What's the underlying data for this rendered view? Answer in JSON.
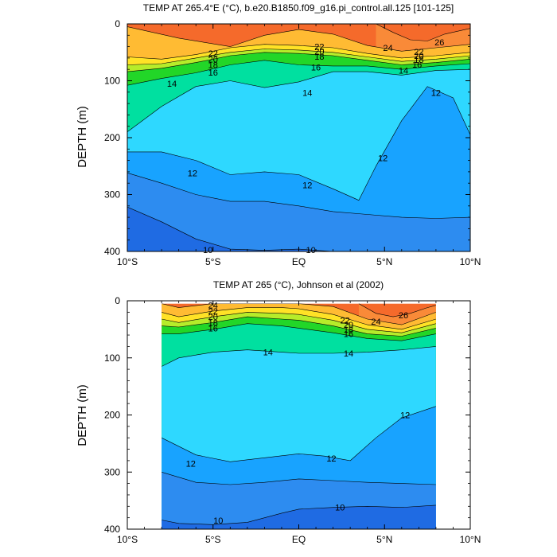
{
  "chart_data": [
    {
      "type": "heatmap",
      "panel": "model",
      "title": "TEMP AT 265.4°E (°C), b.e20.B1850.f09_g16.pi_control.all.125 [101-125]",
      "ylabel": "DEPTH (m)",
      "xlabel": "",
      "x_ticks": [
        "10°S",
        "5°S",
        "EQ",
        "5°N",
        "10°N"
      ],
      "x_tick_values": [
        -10,
        -5,
        0,
        5,
        10
      ],
      "y_ticks": [
        "0",
        "100",
        "200",
        "300",
        "400"
      ],
      "y_tick_values": [
        0,
        100,
        200,
        300,
        400
      ],
      "xlim": [
        -10,
        10
      ],
      "ylim": [
        0,
        400
      ],
      "y_inverted": true,
      "x_data_range": [
        -10,
        10
      ],
      "contour_interval": 1,
      "isotherms": [
        {
          "temp": 26,
          "x": [
            4.5,
            5.5,
            6.5,
            7.5,
            8.5,
            10
          ],
          "depth": [
            0,
            15,
            28,
            30,
            18,
            8
          ]
        },
        {
          "temp": 24,
          "x": [
            -10,
            -7,
            -4,
            -2,
            0,
            2,
            4,
            6,
            8,
            10
          ],
          "depth": [
            5,
            25,
            40,
            20,
            10,
            18,
            38,
            48,
            42,
            36
          ]
        },
        {
          "temp": 22,
          "x": [
            -10,
            -8,
            -6,
            -4,
            -2,
            0,
            2,
            4,
            6,
            8,
            10
          ],
          "depth": [
            58,
            62,
            54,
            42,
            36,
            38,
            42,
            52,
            60,
            56,
            50
          ]
        },
        {
          "temp": 20,
          "x": [
            -10,
            -8,
            -6,
            -4,
            -2,
            0,
            2,
            4,
            6,
            8,
            10
          ],
          "depth": [
            72,
            70,
            60,
            50,
            44,
            46,
            50,
            58,
            66,
            62,
            56
          ]
        },
        {
          "temp": 18,
          "x": [
            -10,
            -8,
            -6,
            -4,
            -2,
            0,
            2,
            4,
            6,
            8,
            10
          ],
          "depth": [
            84,
            78,
            68,
            56,
            50,
            52,
            56,
            64,
            72,
            68,
            62
          ]
        },
        {
          "temp": 16,
          "x": [
            -10,
            -8,
            -6,
            -4,
            -2,
            0,
            2,
            4,
            6,
            8,
            10
          ],
          "depth": [
            108,
            96,
            86,
            72,
            64,
            72,
            74,
            74,
            80,
            74,
            70
          ]
        },
        {
          "temp": 14,
          "x": [
            -10,
            -8,
            -6,
            -4,
            -2,
            0,
            2,
            4,
            6,
            8,
            10
          ],
          "depth": [
            190,
            145,
            110,
            100,
            112,
            102,
            84,
            84,
            90,
            82,
            80
          ]
        },
        {
          "temp": 12,
          "x": [
            -10,
            -8,
            -6,
            -4,
            -2,
            0,
            2,
            3.5,
            4.5,
            6,
            7.5,
            9,
            10
          ],
          "depth": [
            225,
            225,
            240,
            265,
            260,
            265,
            290,
            310,
            250,
            170,
            110,
            130,
            195
          ]
        },
        {
          "temp": 11,
          "x": [
            -10,
            -8,
            -6,
            -4,
            -2,
            0,
            2,
            4,
            6,
            8,
            10
          ],
          "depth": [
            262,
            280,
            300,
            312,
            312,
            320,
            330,
            335,
            340,
            342,
            340
          ]
        },
        {
          "temp": 10,
          "x": [
            -10,
            -8,
            -6,
            -4,
            -2,
            0,
            2,
            4,
            6,
            8,
            10
          ],
          "depth": [
            322,
            348,
            378,
            396,
            398,
            396,
            400,
            400,
            400,
            400,
            400
          ]
        }
      ],
      "contour_labels": [
        {
          "text": "22",
          "x": -5,
          "depth": 52
        },
        {
          "text": "20",
          "x": -5,
          "depth": 62
        },
        {
          "text": "18",
          "x": -5,
          "depth": 72
        },
        {
          "text": "16",
          "x": -5,
          "depth": 85
        },
        {
          "text": "14",
          "x": -7.4,
          "depth": 105
        },
        {
          "text": "12",
          "x": -6.2,
          "depth": 262
        },
        {
          "text": "10",
          "x": -5.3,
          "depth": 397
        },
        {
          "text": "22",
          "x": 1.2,
          "depth": 40
        },
        {
          "text": "20",
          "x": 1.2,
          "depth": 48
        },
        {
          "text": "18",
          "x": 1.2,
          "depth": 57
        },
        {
          "text": "16",
          "x": 1.0,
          "depth": 76
        },
        {
          "text": "14",
          "x": 0.5,
          "depth": 121
        },
        {
          "text": "12",
          "x": 0.5,
          "depth": 283
        },
        {
          "text": "10",
          "x": 0.7,
          "depth": 397
        },
        {
          "text": "24",
          "x": 5.2,
          "depth": 42
        },
        {
          "text": "26",
          "x": 8.2,
          "depth": 32
        },
        {
          "text": "22",
          "x": 7.0,
          "depth": 49
        },
        {
          "text": "20",
          "x": 7.0,
          "depth": 56
        },
        {
          "text": "18",
          "x": 7.0,
          "depth": 63
        },
        {
          "text": "16",
          "x": 6.9,
          "depth": 71
        },
        {
          "text": "14",
          "x": 6.1,
          "depth": 82
        },
        {
          "text": "12",
          "x": 8.0,
          "depth": 121
        },
        {
          "text": "12",
          "x": 4.9,
          "depth": 236
        }
      ]
    },
    {
      "type": "heatmap",
      "panel": "observations",
      "title": "TEMP AT 265 (°C), Johnson et al (2002)",
      "ylabel": "DEPTH (m)",
      "xlabel": "",
      "x_ticks": [
        "10°S",
        "5°S",
        "EQ",
        "5°N",
        "10°N"
      ],
      "x_tick_values": [
        -10,
        -5,
        0,
        5,
        10
      ],
      "y_ticks": [
        "0",
        "100",
        "200",
        "300",
        "400"
      ],
      "y_tick_values": [
        0,
        100,
        200,
        300,
        400
      ],
      "xlim": [
        -10,
        10
      ],
      "ylim": [
        0,
        400
      ],
      "y_inverted": true,
      "x_data_range": [
        -8,
        8
      ],
      "depth_data_range": [
        5,
        400
      ],
      "contour_interval": 1,
      "isotherms": [
        {
          "temp": 26,
          "x": [
            3.5,
            4.5,
            5.5,
            6.5,
            7.5,
            8
          ],
          "depth": [
            5,
            22,
            28,
            22,
            12,
            8
          ]
        },
        {
          "temp": 24,
          "x": [
            -8,
            -7,
            -5,
            -3,
            -1,
            0,
            2,
            4,
            6,
            8
          ],
          "depth": [
            5,
            12,
            5,
            5,
            5,
            5,
            10,
            32,
            42,
            20
          ]
        },
        {
          "temp": 22,
          "x": [
            -8,
            -7,
            -5,
            -3,
            -1,
            0,
            2,
            4,
            6,
            8
          ],
          "depth": [
            20,
            28,
            18,
            12,
            12,
            14,
            24,
            42,
            50,
            32
          ]
        },
        {
          "temp": 20,
          "x": [
            -8,
            -7,
            -5,
            -3,
            -1,
            0,
            2,
            4,
            6,
            8
          ],
          "depth": [
            32,
            38,
            28,
            20,
            22,
            24,
            34,
            50,
            56,
            40
          ]
        },
        {
          "temp": 18,
          "x": [
            -8,
            -7,
            -5,
            -3,
            -1,
            0,
            2,
            4,
            6,
            8
          ],
          "depth": [
            44,
            46,
            38,
            28,
            32,
            34,
            44,
            58,
            62,
            48
          ]
        },
        {
          "temp": 16,
          "x": [
            -8,
            -7,
            -5,
            -3,
            -1,
            0,
            2,
            4,
            6,
            8
          ],
          "depth": [
            58,
            58,
            50,
            40,
            44,
            48,
            56,
            66,
            70,
            58
          ]
        },
        {
          "temp": 14,
          "x": [
            -8,
            -7,
            -5,
            -3,
            -1,
            0,
            2,
            4,
            6,
            8
          ],
          "depth": [
            115,
            100,
            90,
            86,
            90,
            92,
            92,
            90,
            86,
            80
          ]
        },
        {
          "temp": 12,
          "x": [
            -8,
            -6,
            -4,
            -2,
            0,
            1.5,
            3,
            4.5,
            6,
            8
          ],
          "depth": [
            240,
            270,
            282,
            275,
            268,
            272,
            280,
            240,
            205,
            185
          ]
        },
        {
          "temp": 11,
          "x": [
            -8,
            -6,
            -4,
            -2,
            0,
            2,
            4,
            6,
            8
          ],
          "depth": [
            300,
            318,
            322,
            318,
            312,
            315,
            318,
            320,
            322
          ]
        },
        {
          "temp": 10,
          "x": [
            -8,
            -7,
            -5,
            -3,
            -1,
            0,
            2,
            4,
            6,
            8
          ],
          "depth": [
            384,
            390,
            392,
            388,
            372,
            365,
            362,
            360,
            362,
            358
          ]
        }
      ],
      "contour_labels": [
        {
          "text": "24",
          "x": -5.0,
          "depth": 8
        },
        {
          "text": "22",
          "x": -5.0,
          "depth": 18
        },
        {
          "text": "20",
          "x": -5.0,
          "depth": 28
        },
        {
          "text": "18",
          "x": -5.0,
          "depth": 38
        },
        {
          "text": "16",
          "x": -5.0,
          "depth": 48
        },
        {
          "text": "14",
          "x": -1.8,
          "depth": 90
        },
        {
          "text": "12",
          "x": -6.3,
          "depth": 285
        },
        {
          "text": "10",
          "x": -4.7,
          "depth": 385
        },
        {
          "text": "22",
          "x": 2.7,
          "depth": 34
        },
        {
          "text": "20",
          "x": 2.9,
          "depth": 42
        },
        {
          "text": "18",
          "x": 2.9,
          "depth": 50
        },
        {
          "text": "16",
          "x": 2.9,
          "depth": 58
        },
        {
          "text": "14",
          "x": 2.9,
          "depth": 92
        },
        {
          "text": "12",
          "x": 1.9,
          "depth": 276
        },
        {
          "text": "12",
          "x": 6.2,
          "depth": 200
        },
        {
          "text": "10",
          "x": 2.4,
          "depth": 362
        },
        {
          "text": "24",
          "x": 4.5,
          "depth": 36
        },
        {
          "text": "26",
          "x": 6.1,
          "depth": 25
        }
      ]
    }
  ],
  "colors": {
    "bins": [
      {
        "min": 9,
        "max": 10,
        "color": "#1f6be3"
      },
      {
        "min": 10,
        "max": 11,
        "color": "#2d8cf0"
      },
      {
        "min": 11,
        "max": 12,
        "color": "#18a3ff"
      },
      {
        "min": 12,
        "max": 13,
        "color": "#1cbbff"
      },
      {
        "min": 13,
        "max": 14,
        "color": "#2ed8ff"
      },
      {
        "min": 14,
        "max": 15,
        "color": "#33f0ff"
      },
      {
        "min": 15,
        "max": 16,
        "color": "#00e0a0"
      },
      {
        "min": 16,
        "max": 17,
        "color": "#00c850"
      },
      {
        "min": 17,
        "max": 18,
        "color": "#22d628"
      },
      {
        "min": 18,
        "max": 19,
        "color": "#6ee02a"
      },
      {
        "min": 19,
        "max": 20,
        "color": "#b6ec2a"
      },
      {
        "min": 20,
        "max": 21,
        "color": "#f6ef28"
      },
      {
        "min": 21,
        "max": 22,
        "color": "#ffe226"
      },
      {
        "min": 22,
        "max": 23,
        "color": "#ffd02a"
      },
      {
        "min": 23,
        "max": 24,
        "color": "#ffbb33"
      },
      {
        "min": 24,
        "max": 25,
        "color": "#fca83a"
      },
      {
        "min": 25,
        "max": 26,
        "color": "#f98a38"
      },
      {
        "min": 26,
        "max": 27,
        "color": "#f56a2b"
      },
      {
        "min": 27,
        "max": 28,
        "color": "#ee3b1c"
      }
    ],
    "contour_line": "#000000",
    "background": "#ffffff"
  }
}
